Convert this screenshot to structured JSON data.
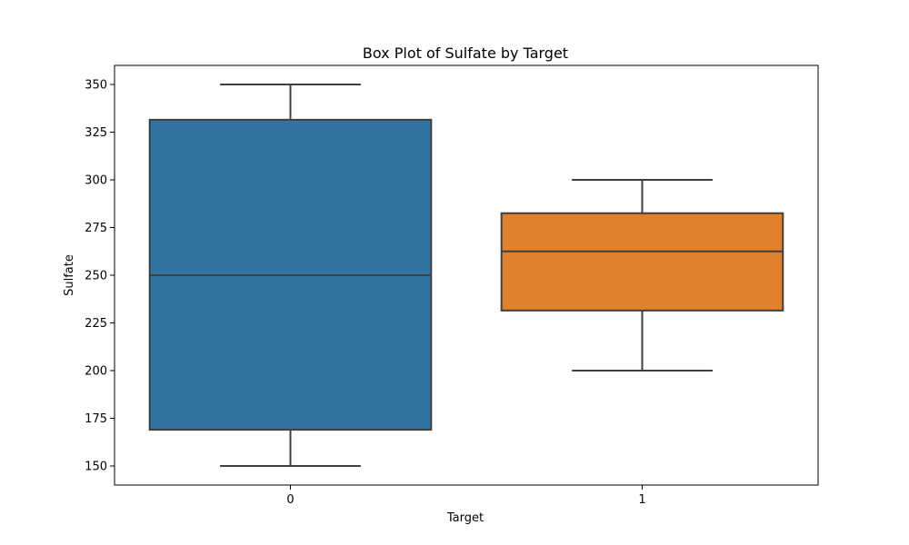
{
  "chart_data": {
    "type": "box",
    "title": "Box Plot of Sulfate by Target",
    "xlabel": "Target",
    "ylabel": "Sulfate",
    "categories": [
      "0",
      "1"
    ],
    "ylim": [
      140,
      360
    ],
    "yticks": [
      150,
      175,
      200,
      225,
      250,
      275,
      300,
      325,
      350
    ],
    "boxes": [
      {
        "category": "0",
        "min": 150,
        "q1": 169,
        "median": 250,
        "q3": 331.5,
        "max": 350,
        "color": "#3274a1"
      },
      {
        "category": "1",
        "min": 200,
        "q1": 231.5,
        "median": 262.5,
        "q3": 282.5,
        "max": 300,
        "color": "#e1812c"
      }
    ],
    "grid": false,
    "legend": "none"
  }
}
